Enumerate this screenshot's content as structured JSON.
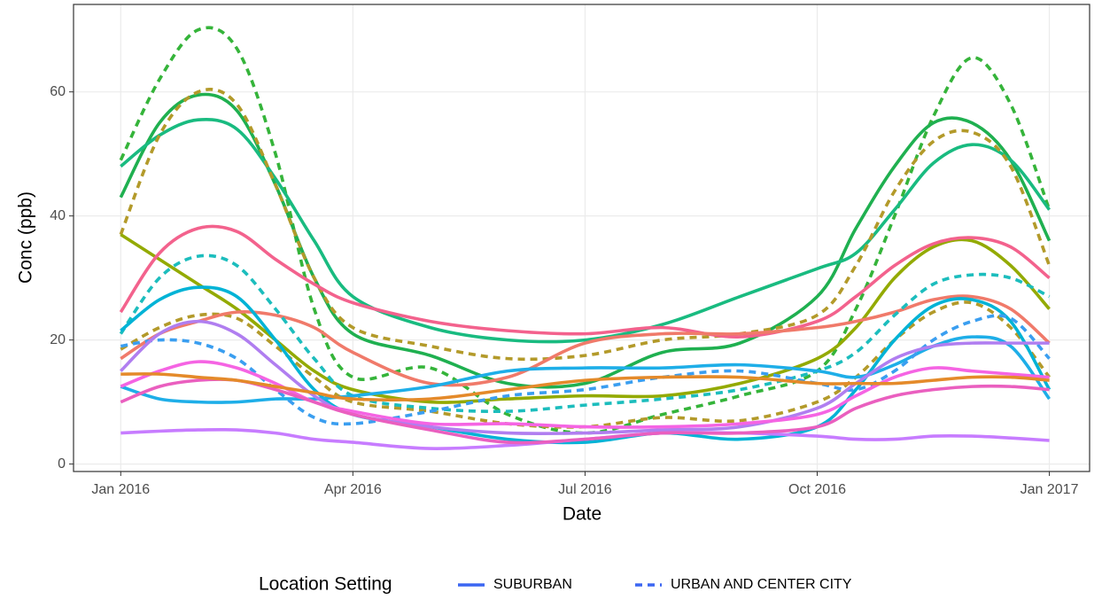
{
  "chart_data": {
    "type": "line",
    "x_label": "Date",
    "y_label": "Conc (ppb)",
    "x": [
      0,
      0.5,
      1,
      1.5,
      2,
      2.5,
      3,
      4,
      5,
      6,
      7,
      8,
      9,
      9.5,
      10,
      10.5,
      11,
      11.5,
      12
    ],
    "xlim": [
      -0.61,
      12.52
    ],
    "xticks": [
      {
        "value": 0,
        "label": "Jan 2016"
      },
      {
        "value": 3,
        "label": "Apr 2016"
      },
      {
        "value": 6,
        "label": "Jul 2016"
      },
      {
        "value": 9,
        "label": "Oct 2016"
      },
      {
        "value": 12,
        "label": "Jan 2017"
      }
    ],
    "ylim": [
      -1.2,
      74.1
    ],
    "yticks": [
      0,
      20,
      40,
      60
    ],
    "grid": true,
    "series": [
      {
        "color": "#35b43a",
        "dashed": true,
        "values": [
          49,
          62,
          70,
          67,
          50,
          25,
          14,
          15.5,
          8,
          5,
          8,
          11,
          15,
          25,
          40,
          56,
          65.5,
          58,
          41
        ]
      },
      {
        "color": "#1fb050",
        "dashed": false,
        "values": [
          43,
          55,
          59.5,
          57,
          45,
          30,
          21,
          17.5,
          13,
          13,
          18,
          19.5,
          27,
          38,
          48,
          55,
          55,
          49,
          36
        ]
      },
      {
        "color": "#19bb80",
        "dashed": false,
        "values": [
          48,
          53,
          55.5,
          54,
          46,
          36,
          27,
          22,
          20,
          20,
          22.5,
          27,
          31.5,
          34,
          41,
          48.5,
          51.5,
          49,
          41
        ]
      },
      {
        "color": "#b39a2a",
        "dashed": true,
        "values": [
          37,
          53,
          60,
          58,
          45,
          30,
          22,
          19,
          17,
          17.5,
          20,
          21,
          24,
          32,
          44,
          52,
          53.5,
          48,
          32
        ]
      },
      {
        "color": "#b39a2a",
        "dashed": true,
        "values": [
          18.5,
          22,
          24,
          23.5,
          19,
          14,
          10,
          8.5,
          6.5,
          6,
          7.5,
          7,
          10,
          14,
          20,
          24.5,
          26,
          22,
          14
        ]
      },
      {
        "color": "#93aa00",
        "dashed": false,
        "values": [
          37,
          33,
          29,
          25,
          20,
          15,
          12,
          10,
          10.5,
          11,
          11,
          13,
          17,
          22,
          30,
          35,
          36,
          32,
          25
        ]
      },
      {
        "color": "#f3628d",
        "dashed": false,
        "values": [
          24.5,
          34,
          38,
          37.5,
          33,
          29,
          26,
          23,
          21.5,
          21,
          22,
          20.5,
          23,
          27,
          32,
          35.5,
          36.5,
          35,
          30
        ]
      },
      {
        "color": "#f07a6a",
        "dashed": false,
        "values": [
          17,
          21,
          23,
          24.5,
          24,
          22,
          18,
          13,
          14,
          19.5,
          21,
          21,
          22,
          23,
          24.5,
          26.5,
          27,
          25,
          19.5
        ]
      },
      {
        "color": "#1cbdbd",
        "dashed": true,
        "values": [
          21,
          30,
          33.5,
          32,
          25,
          17,
          11,
          9,
          8.5,
          9.5,
          10.5,
          12,
          15,
          18,
          24,
          29,
          30.5,
          30,
          27
        ]
      },
      {
        "color": "#00b3d6",
        "dashed": false,
        "values": [
          21.5,
          26.5,
          28.5,
          27,
          20,
          12,
          8,
          6,
          4,
          3.5,
          5,
          4,
          6,
          12,
          20,
          25.5,
          26.5,
          23,
          12
        ]
      },
      {
        "color": "#1eaee8",
        "dashed": false,
        "values": [
          12.5,
          10.5,
          10,
          10,
          10.5,
          10.5,
          11,
          12.5,
          15,
          15.5,
          15.5,
          16,
          15,
          14,
          16,
          19,
          20.5,
          19,
          10.5
        ]
      },
      {
        "color": "#3a9ef0",
        "dashed": true,
        "values": [
          19,
          20,
          19.5,
          17,
          12,
          7.5,
          6.5,
          8.5,
          11,
          12,
          14,
          15,
          13,
          12,
          15,
          20,
          23,
          23.5,
          17
        ]
      },
      {
        "color": "#b07ef0",
        "dashed": false,
        "values": [
          15,
          21,
          23,
          21,
          16,
          11,
          8,
          6,
          5,
          5,
          5.5,
          6,
          9,
          13,
          17,
          19,
          19.5,
          19.5,
          19.5
        ]
      },
      {
        "color": "#c77cff",
        "dashed": false,
        "values": [
          5,
          5.3,
          5.5,
          5.5,
          5,
          4,
          3.5,
          2.5,
          3,
          4,
          5,
          5,
          4.5,
          4,
          4,
          4.5,
          4.5,
          4.2,
          3.8
        ]
      },
      {
        "color": "#f564e3",
        "dashed": false,
        "values": [
          12.5,
          15,
          16.5,
          15.5,
          13,
          10,
          8.5,
          6.5,
          6.5,
          6,
          6,
          6.5,
          8,
          11,
          14,
          15.5,
          15,
          14.5,
          14
        ]
      },
      {
        "color": "#ea5fbf",
        "dashed": false,
        "values": [
          10,
          12.5,
          13.5,
          13.5,
          12,
          10,
          8,
          5.5,
          3.5,
          4,
          5,
          5,
          6,
          9,
          11,
          12,
          12.5,
          12.5,
          12
        ]
      },
      {
        "color": "#e48a2a",
        "dashed": false,
        "values": [
          14.5,
          14.5,
          14,
          13.5,
          12.5,
          11.5,
          10.5,
          10.5,
          12,
          13.5,
          14,
          14,
          13,
          13,
          13,
          13.5,
          14,
          14,
          13.5
        ]
      }
    ],
    "legend": {
      "title": "Location Setting",
      "position": "bottom",
      "items": [
        {
          "label": "SUBURBAN",
          "dashed": false,
          "color": "#3b66f2"
        },
        {
          "label": "URBAN AND CENTER CITY",
          "dashed": true,
          "color": "#3b66f2"
        }
      ]
    }
  }
}
